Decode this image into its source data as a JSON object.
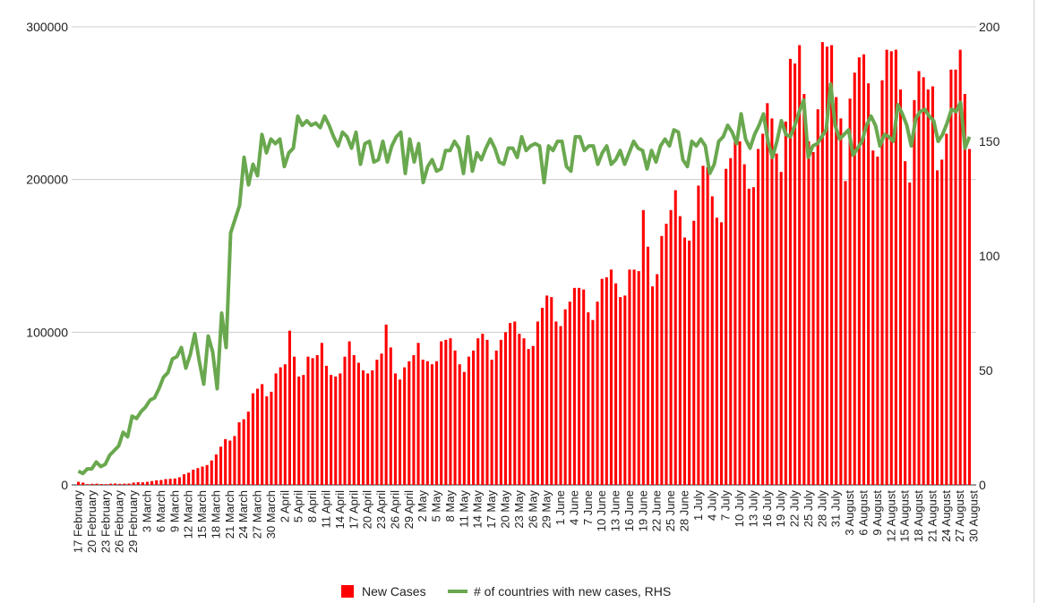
{
  "chart_data": {
    "type": "bar+line",
    "title": "",
    "xlabel": "",
    "ylabel": "",
    "ylim": [
      0,
      300000
    ],
    "y2lim": [
      0,
      200
    ],
    "yticks": [
      "0",
      "100000",
      "200000",
      "300000"
    ],
    "y2ticks": [
      "0",
      "50",
      "100",
      "150",
      "200"
    ],
    "x_tick_labels": [
      "17 February",
      "20 February",
      "23 February",
      "26 February",
      "29 February",
      "3 March",
      "6 March",
      "9 March",
      "12 March",
      "15 March",
      "18 March",
      "21 March",
      "24 March",
      "27 March",
      "30 March",
      "2 April",
      "5 April",
      "8 April",
      "11 April",
      "14 April",
      "17 April",
      "20 April",
      "23 April",
      "26 April",
      "29 April",
      "2 May",
      "5 May",
      "8 May",
      "11 May",
      "14 May",
      "17 May",
      "20 May",
      "23 May",
      "26 May",
      "29 May",
      "1 June",
      "4 June",
      "7 June",
      "10 June",
      "13 June",
      "16 June",
      "19 June",
      "22 June",
      "25 June",
      "28 June",
      "1 July",
      "4 July",
      "7 July",
      "10 July",
      "13 July",
      "16 July",
      "19 July",
      "22 July",
      "25 July",
      "28 July",
      "31 July",
      "3 August",
      "6 August",
      "9 August",
      "12 August",
      "15 August",
      "18 August",
      "21 August",
      "24 August",
      "27 August",
      "30 August"
    ],
    "legend": {
      "position": "bottom"
    },
    "grid": true,
    "series": [
      {
        "name": "New Cases",
        "axis": "left",
        "mark": "bar",
        "color": "#ff0000",
        "values": [
          2000,
          1500,
          500,
          700,
          800,
          600,
          500,
          800,
          900,
          700,
          800,
          900,
          1500,
          1800,
          1700,
          2000,
          2500,
          3000,
          3200,
          3800,
          4000,
          4200,
          5000,
          7000,
          8000,
          10000,
          11000,
          12000,
          13000,
          16000,
          20000,
          25000,
          30000,
          29000,
          32000,
          41000,
          43000,
          48000,
          60000,
          63000,
          66000,
          58000,
          61000,
          73000,
          77000,
          79000,
          101000,
          84000,
          71000,
          72000,
          84000,
          83000,
          85000,
          93000,
          78000,
          72000,
          71000,
          73000,
          84000,
          94000,
          85000,
          80000,
          75000,
          73000,
          75000,
          82000,
          86000,
          105000,
          90000,
          73000,
          69000,
          77000,
          81000,
          85000,
          93000,
          82000,
          81000,
          79000,
          81000,
          94000,
          95000,
          96000,
          88000,
          79000,
          74000,
          84000,
          88000,
          96000,
          99000,
          95000,
          82000,
          88000,
          95000,
          100000,
          106000,
          107000,
          99000,
          96000,
          89000,
          91000,
          107000,
          116000,
          124000,
          123000,
          107000,
          104000,
          115000,
          120000,
          129000,
          129000,
          128000,
          113000,
          108000,
          120000,
          135000,
          136000,
          141000,
          132000,
          123000,
          124000,
          141000,
          141000,
          140000,
          180000,
          156000,
          130000,
          138000,
          163000,
          171000,
          180000,
          193000,
          176000,
          162000,
          160000,
          173000,
          196000,
          209000,
          208000,
          189000,
          175000,
          172000,
          207000,
          214000,
          227000,
          225000,
          210000,
          194000,
          195000,
          220000,
          230000,
          250000,
          240000,
          217000,
          205000,
          238000,
          279000,
          276000,
          288000,
          256000,
          225000,
          218000,
          246000,
          290000,
          287000,
          288000,
          254000,
          240000,
          199000,
          253000,
          270000,
          280000,
          282000,
          263000,
          219000,
          215000,
          265000,
          285000,
          284000,
          285000,
          259000,
          212000,
          198000,
          252000,
          271000,
          267000,
          259000,
          261000,
          206000,
          213000,
          230000,
          272000,
          272000,
          285000,
          256000,
          220000
        ]
      },
      {
        "name": "# of countries with new cases, RHS",
        "axis": "right",
        "mark": "line",
        "color": "#6aa84f",
        "values": [
          6,
          5,
          7,
          7,
          10,
          8,
          9,
          13,
          15,
          17,
          23,
          21,
          30,
          29,
          32,
          34,
          37,
          38,
          42,
          47,
          49,
          55,
          56,
          60,
          51,
          57,
          66,
          54,
          44,
          65,
          58,
          42,
          75,
          60,
          110,
          116,
          122,
          143,
          131,
          140,
          135,
          153,
          145,
          151,
          149,
          151,
          139,
          145,
          147,
          161,
          157,
          159,
          157,
          158,
          156,
          161,
          157,
          152,
          148,
          154,
          152,
          147,
          154,
          140,
          149,
          150,
          141,
          142,
          150,
          141,
          148,
          152,
          154,
          136,
          151,
          141,
          149,
          132,
          139,
          142,
          137,
          138,
          146,
          146,
          150,
          147,
          136,
          152,
          137,
          145,
          142,
          147,
          151,
          147,
          141,
          140,
          147,
          147,
          143,
          152,
          146,
          148,
          149,
          148,
          132,
          148,
          146,
          150,
          150,
          139,
          137,
          152,
          152,
          146,
          148,
          148,
          140,
          145,
          148,
          140,
          142,
          146,
          140,
          145,
          150,
          147,
          146,
          138,
          146,
          141,
          148,
          151,
          148,
          155,
          154,
          142,
          139,
          150,
          148,
          151,
          148,
          136,
          140,
          150,
          152,
          157,
          154,
          149,
          162,
          151,
          147,
          153,
          157,
          162,
          150,
          143,
          150,
          159,
          153,
          152,
          157,
          163,
          168,
          143,
          148,
          149,
          152,
          155,
          175,
          157,
          151,
          153,
          155,
          144,
          147,
          150,
          157,
          161,
          157,
          148,
          153,
          152,
          150,
          166,
          162,
          157,
          148,
          160,
          163,
          164,
          161,
          159,
          150,
          153,
          158,
          164,
          163,
          167,
          147,
          152
        ]
      }
    ]
  }
}
